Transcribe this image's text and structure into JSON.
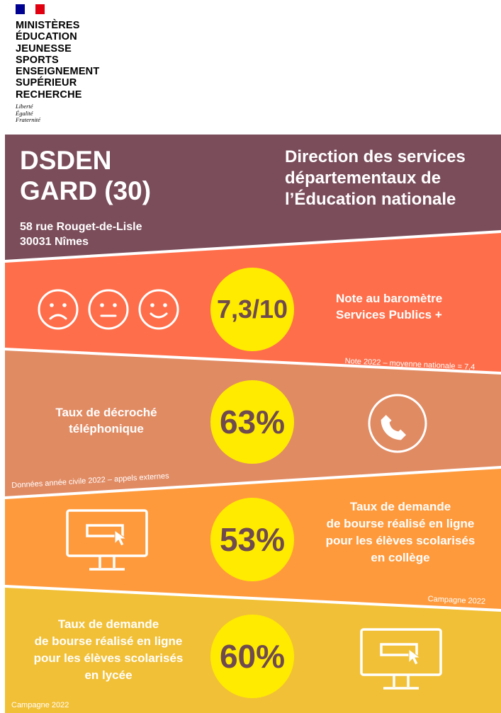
{
  "logo": {
    "ministeres": [
      "MINISTÈRES",
      "ÉDUCATION",
      "JEUNESSE",
      "SPORTS",
      "ENSEIGNEMENT",
      "SUPÉRIEUR",
      "RECHERCHE"
    ],
    "devise": [
      "Liberté",
      "Égalité",
      "Fraternité"
    ]
  },
  "header": {
    "title_line1": "DSDEN",
    "title_line2": "GARD (30)",
    "address_line1": "58 rue Rouget-de-Lisle",
    "address_line2": "30031 Nîmes",
    "subtitle_line1": "Direction des services",
    "subtitle_line2": "départementaux de",
    "subtitle_line3": "l’Éducation nationale"
  },
  "band1": {
    "value": "7,3/10",
    "label_line1": "Note au baromètre",
    "label_line2": "Services Publics +",
    "note": "Note 2022 – moyenne nationale = 7,4",
    "icons": [
      "sad-face-icon",
      "neutral-face-icon",
      "happy-face-icon"
    ]
  },
  "band2": {
    "value": "63%",
    "label_line1": "Taux de décroché",
    "label_line2": "téléphonique",
    "note": "Données année civile 2022 – appels externes",
    "icon": "phone-icon"
  },
  "band3": {
    "value": "53%",
    "label_line1": "Taux de demande",
    "label_line2": "de bourse réalisé en ligne",
    "label_line3": "pour les élèves scolarisés",
    "label_line4": "en collège",
    "note": "Campagne 2022",
    "icon": "computer-monitor-icon"
  },
  "band4": {
    "value": "60%",
    "label_line1": "Taux de demande",
    "label_line2": "de bourse réalisé en ligne",
    "label_line3": "pour les élèves scolarisés",
    "label_line4": "en lycée",
    "note": "Campagne 2022",
    "icon": "computer-monitor-icon"
  },
  "colors": {
    "header": "#7b4d5b",
    "band1": "#ff6e4a",
    "band2": "#e18b63",
    "band3": "#ff9a3c",
    "band4": "#f2c036",
    "badge": "#ffeb00",
    "badge_text": "#6f4a4f"
  }
}
